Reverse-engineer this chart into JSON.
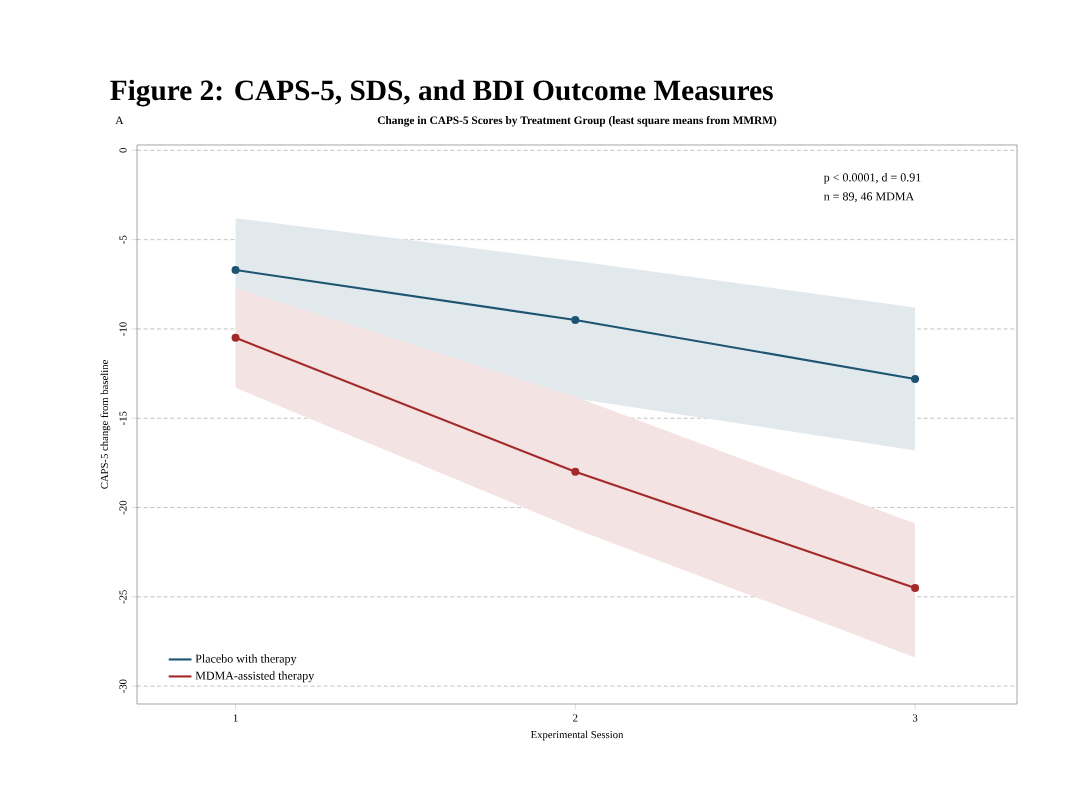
{
  "chart_data": {
    "type": "line",
    "title": "Figure 2: CAPS-5, SDS, and BDI Outcome Measures",
    "subtitle": "Change in CAPS-5 Scores by Treatment Group (least square means from MMRM)",
    "xlabel": "Experimental Session",
    "ylabel": "CAPS-5 change from baseline",
    "annotations": [
      "A",
      "p < 0.0001, d = 0.91",
      "n = 89, 46 MDMA"
    ],
    "x": [
      1,
      2,
      3
    ],
    "xlim": [
      0.71,
      3.3
    ],
    "xticks": [
      1,
      2,
      3
    ],
    "ylim": [
      -31,
      0.3
    ],
    "yticks": [
      0,
      -5,
      -10,
      -15,
      -20,
      -25,
      -30
    ],
    "grid": "y",
    "legend": "bottom left",
    "marker": "circle",
    "line_style": "solid",
    "series": [
      {
        "name": "Placebo with therapy",
        "color": "#1d5472",
        "values": [
          -6.7,
          -9.5,
          -12.8
        ],
        "lower": [
          -9.6,
          -13.9,
          -16.8
        ],
        "upper": [
          -3.8,
          -6.2,
          -8.8
        ]
      },
      {
        "name": "MDMA-assisted therapy",
        "color": "#a42a2a",
        "values": [
          -10.5,
          -18.0,
          -24.5
        ],
        "lower": [
          -13.3,
          -21.2,
          -28.4
        ],
        "upper": [
          -7.7,
          -13.8,
          -20.9
        ]
      }
    ]
  }
}
